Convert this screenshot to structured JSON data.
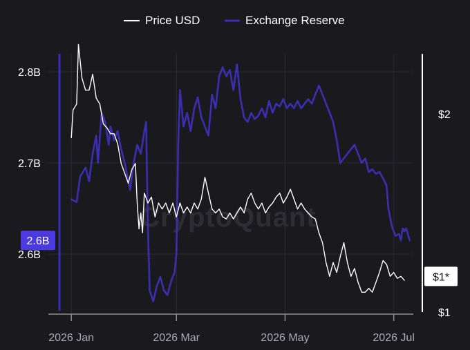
{
  "chart_data": {
    "type": "line",
    "legend": [
      {
        "label": "Price USD",
        "color": "#ffffff"
      },
      {
        "label": "Exchange Reserve",
        "color": "#3b2fb0"
      }
    ],
    "legend_placement": "top-center",
    "watermark": "CryptoQuant",
    "y_left": {
      "ticks": [
        {
          "value": 2.8,
          "label": "2.8B"
        },
        {
          "value": 2.7,
          "label": "2.7B"
        },
        {
          "value": 2.6,
          "label": "2.6B"
        }
      ],
      "range": [
        2.55,
        2.82
      ],
      "current_badge": "2.6B",
      "current_value": 2.615
    },
    "y_right": {
      "ticks": [
        {
          "value": 2,
          "label": "$2"
        },
        {
          "value": 1,
          "label": "$1"
        }
      ],
      "range": [
        0.95,
        2.35
      ],
      "current_badge": "$1*",
      "current_value": 1.18
    },
    "x_axis": {
      "ticks": [
        {
          "date": "2026-01-01",
          "label": "2026 Jan"
        },
        {
          "date": "2026-03-01",
          "label": "2026 Mar"
        },
        {
          "date": "2026-05-01",
          "label": "2026 May"
        },
        {
          "date": "2026-07-01",
          "label": "2026 Jul"
        }
      ],
      "range": [
        "2025-12-30",
        "2026-07-12"
      ]
    },
    "grid": true,
    "series": [
      {
        "name": "Exchange Reserve",
        "axis": "left",
        "color": "#3b2fb0",
        "points": [
          [
            "2026-01-01",
            2.66
          ],
          [
            "2026-01-04",
            2.657
          ],
          [
            "2026-01-06",
            2.685
          ],
          [
            "2026-01-09",
            2.695
          ],
          [
            "2026-01-11",
            2.68
          ],
          [
            "2026-01-13",
            2.71
          ],
          [
            "2026-01-15",
            2.73
          ],
          [
            "2026-01-16",
            2.7
          ],
          [
            "2026-01-18",
            2.755
          ],
          [
            "2026-01-20",
            2.745
          ],
          [
            "2026-01-22",
            2.72
          ],
          [
            "2026-01-23",
            2.74
          ],
          [
            "2026-01-25",
            2.725
          ],
          [
            "2026-01-27",
            2.735
          ],
          [
            "2026-01-29",
            2.715
          ],
          [
            "2026-01-31",
            2.7
          ],
          [
            "2026-02-01",
            2.69
          ],
          [
            "2026-02-03",
            2.67
          ],
          [
            "2026-02-05",
            2.7
          ],
          [
            "2026-02-07",
            2.72
          ],
          [
            "2026-02-09",
            2.71
          ],
          [
            "2026-02-11",
            2.735
          ],
          [
            "2026-02-12",
            2.745
          ],
          [
            "2026-02-13",
            2.63
          ],
          [
            "2026-02-14",
            2.56
          ],
          [
            "2026-02-16",
            2.548
          ],
          [
            "2026-02-18",
            2.565
          ],
          [
            "2026-02-20",
            2.575
          ],
          [
            "2026-02-22",
            2.56
          ],
          [
            "2026-02-24",
            2.555
          ],
          [
            "2026-02-26",
            2.57
          ],
          [
            "2026-02-28",
            2.58
          ],
          [
            "2026-03-01",
            2.6
          ],
          [
            "2026-03-02",
            2.72
          ],
          [
            "2026-03-03",
            2.78
          ],
          [
            "2026-03-05",
            2.74
          ],
          [
            "2026-03-07",
            2.755
          ],
          [
            "2026-03-09",
            2.735
          ],
          [
            "2026-03-11",
            2.76
          ],
          [
            "2026-03-13",
            2.772
          ],
          [
            "2026-03-15",
            2.75
          ],
          [
            "2026-03-17",
            2.74
          ],
          [
            "2026-03-19",
            2.73
          ],
          [
            "2026-03-21",
            2.775
          ],
          [
            "2026-03-23",
            2.76
          ],
          [
            "2026-03-25",
            2.795
          ],
          [
            "2026-03-27",
            2.805
          ],
          [
            "2026-03-29",
            2.795
          ],
          [
            "2026-03-31",
            2.802
          ],
          [
            "2026-04-02",
            2.78
          ],
          [
            "2026-04-04",
            2.808
          ],
          [
            "2026-04-06",
            2.77
          ],
          [
            "2026-04-08",
            2.75
          ],
          [
            "2026-04-10",
            2.745
          ],
          [
            "2026-04-12",
            2.755
          ],
          [
            "2026-04-14",
            2.748
          ],
          [
            "2026-04-16",
            2.752
          ],
          [
            "2026-04-18",
            2.76
          ],
          [
            "2026-04-20",
            2.75
          ],
          [
            "2026-04-22",
            2.768
          ],
          [
            "2026-04-24",
            2.755
          ],
          [
            "2026-04-26",
            2.765
          ],
          [
            "2026-04-28",
            2.762
          ],
          [
            "2026-04-30",
            2.77
          ],
          [
            "2026-05-02",
            2.76
          ],
          [
            "2026-05-04",
            2.765
          ],
          [
            "2026-05-06",
            2.76
          ],
          [
            "2026-05-08",
            2.768
          ],
          [
            "2026-05-10",
            2.76
          ],
          [
            "2026-05-12",
            2.765
          ],
          [
            "2026-05-14",
            2.77
          ],
          [
            "2026-05-16",
            2.765
          ],
          [
            "2026-05-18",
            2.775
          ],
          [
            "2026-05-20",
            2.785
          ],
          [
            "2026-05-22",
            2.775
          ],
          [
            "2026-05-24",
            2.765
          ],
          [
            "2026-05-26",
            2.755
          ],
          [
            "2026-05-28",
            2.745
          ],
          [
            "2026-05-30",
            2.725
          ],
          [
            "2026-06-01",
            2.7
          ],
          [
            "2026-06-03",
            2.705
          ],
          [
            "2026-06-05",
            2.71
          ],
          [
            "2026-06-07",
            2.715
          ],
          [
            "2026-06-09",
            2.72
          ],
          [
            "2026-06-11",
            2.71
          ],
          [
            "2026-06-13",
            2.7
          ],
          [
            "2026-06-15",
            2.705
          ],
          [
            "2026-06-17",
            2.69
          ],
          [
            "2026-06-19",
            2.693
          ],
          [
            "2026-06-21",
            2.688
          ],
          [
            "2026-06-23",
            2.69
          ],
          [
            "2026-06-25",
            2.683
          ],
          [
            "2026-06-27",
            2.675
          ],
          [
            "2026-06-28",
            2.65
          ],
          [
            "2026-06-30",
            2.63
          ],
          [
            "2026-07-02",
            2.62
          ],
          [
            "2026-07-04",
            2.622
          ],
          [
            "2026-07-05",
            2.615
          ],
          [
            "2026-07-06",
            2.628
          ],
          [
            "2026-07-07",
            2.625
          ],
          [
            "2026-07-08",
            2.628
          ],
          [
            "2026-07-10",
            2.615
          ]
        ]
      },
      {
        "name": "Price USD",
        "axis": "right",
        "color": "#ffffff",
        "points": [
          [
            "2026-01-01",
            1.88
          ],
          [
            "2026-01-02",
            2.02
          ],
          [
            "2026-01-04",
            2.05
          ],
          [
            "2026-01-05",
            2.35
          ],
          [
            "2026-01-07",
            2.18
          ],
          [
            "2026-01-09",
            2.12
          ],
          [
            "2026-01-11",
            2.12
          ],
          [
            "2026-01-13",
            2.2
          ],
          [
            "2026-01-15",
            2.08
          ],
          [
            "2026-01-17",
            2.05
          ],
          [
            "2026-01-19",
            1.95
          ],
          [
            "2026-01-21",
            1.93
          ],
          [
            "2026-01-23",
            1.9
          ],
          [
            "2026-01-25",
            1.9
          ],
          [
            "2026-01-27",
            1.85
          ],
          [
            "2026-01-29",
            1.75
          ],
          [
            "2026-01-31",
            1.7
          ],
          [
            "2026-02-02",
            1.65
          ],
          [
            "2026-02-04",
            1.72
          ],
          [
            "2026-02-06",
            1.75
          ],
          [
            "2026-02-07",
            1.55
          ],
          [
            "2026-02-08",
            1.42
          ],
          [
            "2026-02-09",
            1.5
          ],
          [
            "2026-02-10",
            1.4
          ],
          [
            "2026-02-11",
            1.6
          ],
          [
            "2026-02-13",
            1.55
          ],
          [
            "2026-02-15",
            1.58
          ],
          [
            "2026-02-17",
            1.48
          ],
          [
            "2026-02-19",
            1.55
          ],
          [
            "2026-02-21",
            1.52
          ],
          [
            "2026-02-23",
            1.55
          ],
          [
            "2026-02-25",
            1.5
          ],
          [
            "2026-02-27",
            1.55
          ],
          [
            "2026-03-01",
            1.48
          ],
          [
            "2026-03-03",
            1.55
          ],
          [
            "2026-03-05",
            1.5
          ],
          [
            "2026-03-07",
            1.53
          ],
          [
            "2026-03-09",
            1.5
          ],
          [
            "2026-03-11",
            1.55
          ],
          [
            "2026-03-13",
            1.52
          ],
          [
            "2026-03-15",
            1.57
          ],
          [
            "2026-03-17",
            1.68
          ],
          [
            "2026-03-19",
            1.6
          ],
          [
            "2026-03-21",
            1.52
          ],
          [
            "2026-03-23",
            1.5
          ],
          [
            "2026-03-25",
            1.52
          ],
          [
            "2026-03-27",
            1.48
          ],
          [
            "2026-03-29",
            1.47
          ],
          [
            "2026-03-31",
            1.5
          ],
          [
            "2026-04-02",
            1.47
          ],
          [
            "2026-04-04",
            1.5
          ],
          [
            "2026-04-06",
            1.53
          ],
          [
            "2026-04-08",
            1.5
          ],
          [
            "2026-04-10",
            1.57
          ],
          [
            "2026-04-12",
            1.6
          ],
          [
            "2026-04-14",
            1.55
          ],
          [
            "2026-04-16",
            1.52
          ],
          [
            "2026-04-18",
            1.55
          ],
          [
            "2026-04-20",
            1.5
          ],
          [
            "2026-04-22",
            1.53
          ],
          [
            "2026-04-24",
            1.55
          ],
          [
            "2026-04-26",
            1.58
          ],
          [
            "2026-04-28",
            1.6
          ],
          [
            "2026-04-30",
            1.55
          ],
          [
            "2026-05-02",
            1.58
          ],
          [
            "2026-05-04",
            1.62
          ],
          [
            "2026-05-06",
            1.57
          ],
          [
            "2026-05-08",
            1.52
          ],
          [
            "2026-05-10",
            1.55
          ],
          [
            "2026-05-12",
            1.52
          ],
          [
            "2026-05-14",
            1.5
          ],
          [
            "2026-05-16",
            1.48
          ],
          [
            "2026-05-18",
            1.47
          ],
          [
            "2026-05-20",
            1.4
          ],
          [
            "2026-05-22",
            1.35
          ],
          [
            "2026-05-24",
            1.25
          ],
          [
            "2026-05-26",
            1.18
          ],
          [
            "2026-05-28",
            1.25
          ],
          [
            "2026-05-30",
            1.2
          ],
          [
            "2026-06-01",
            1.28
          ],
          [
            "2026-06-03",
            1.35
          ],
          [
            "2026-06-05",
            1.25
          ],
          [
            "2026-06-07",
            1.18
          ],
          [
            "2026-06-09",
            1.22
          ],
          [
            "2026-06-11",
            1.15
          ],
          [
            "2026-06-13",
            1.1
          ],
          [
            "2026-06-15",
            1.1
          ],
          [
            "2026-06-17",
            1.12
          ],
          [
            "2026-06-19",
            1.1
          ],
          [
            "2026-06-21",
            1.15
          ],
          [
            "2026-06-23",
            1.2
          ],
          [
            "2026-06-25",
            1.26
          ],
          [
            "2026-06-27",
            1.24
          ],
          [
            "2026-06-29",
            1.18
          ],
          [
            "2026-07-01",
            1.2
          ],
          [
            "2026-07-03",
            1.17
          ],
          [
            "2026-07-05",
            1.18
          ],
          [
            "2026-07-07",
            1.16
          ]
        ]
      }
    ]
  }
}
